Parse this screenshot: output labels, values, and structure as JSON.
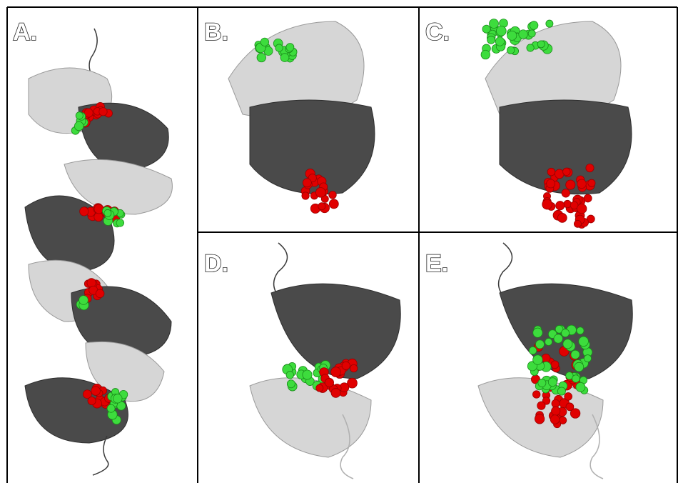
{
  "panels": [
    {
      "label": "A."
    },
    {
      "label": "B."
    },
    {
      "label": "C."
    },
    {
      "label": "D."
    },
    {
      "label": "E."
    }
  ]
}
